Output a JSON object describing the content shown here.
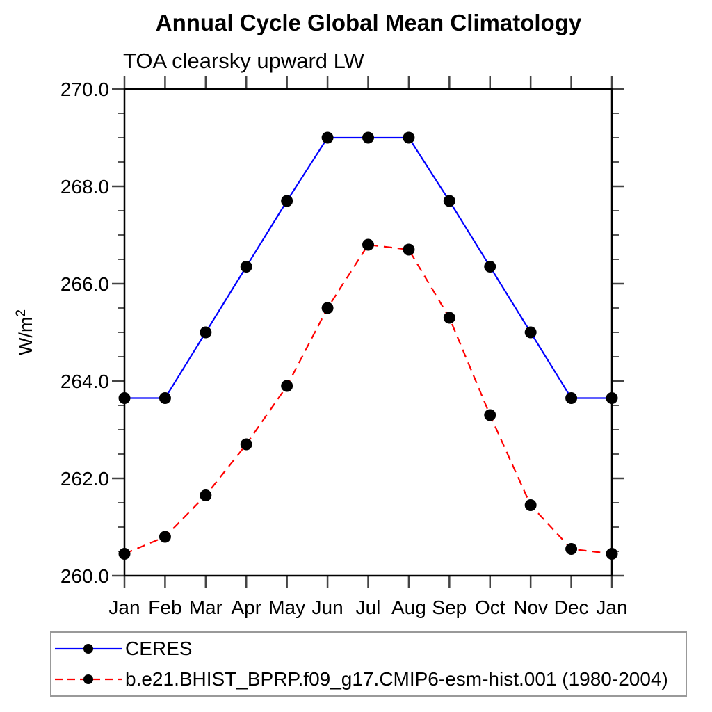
{
  "chart_data": {
    "type": "line",
    "title": "Annual Cycle Global Mean Climatology",
    "subtitle": "TOA clearsky upward LW",
    "xlabel": "",
    "ylabel": "W/m²",
    "ylim": [
      260.0,
      270.0
    ],
    "ytick_step": 2.0,
    "yminor_step": 0.5,
    "ytick_labels": [
      "260.0",
      "262.0",
      "264.0",
      "266.0",
      "268.0",
      "270.0"
    ],
    "categories": [
      "Jan",
      "Feb",
      "Mar",
      "Apr",
      "May",
      "Jun",
      "Jul",
      "Aug",
      "Sep",
      "Oct",
      "Nov",
      "Dec",
      "Jan"
    ],
    "grid": false,
    "legend_position": "bottom-left",
    "series": [
      {
        "name": "CERES",
        "color": "#0000ff",
        "line_style": "solid",
        "marker": "filled-circle",
        "marker_color": "#000000",
        "values": [
          263.65,
          263.65,
          265.0,
          266.35,
          267.7,
          269.0,
          269.0,
          269.0,
          267.7,
          266.35,
          265.0,
          263.65,
          263.65
        ]
      },
      {
        "name": "b.e21.BHIST_BPRP.f09_g17.CMIP6-esm-hist.001 (1980-2004)",
        "color": "#ff0000",
        "line_style": "dashed",
        "marker": "filled-circle",
        "marker_color": "#000000",
        "values": [
          260.45,
          260.8,
          261.65,
          262.7,
          263.9,
          265.5,
          266.8,
          266.7,
          265.3,
          263.3,
          261.45,
          260.55,
          260.45
        ]
      }
    ]
  }
}
